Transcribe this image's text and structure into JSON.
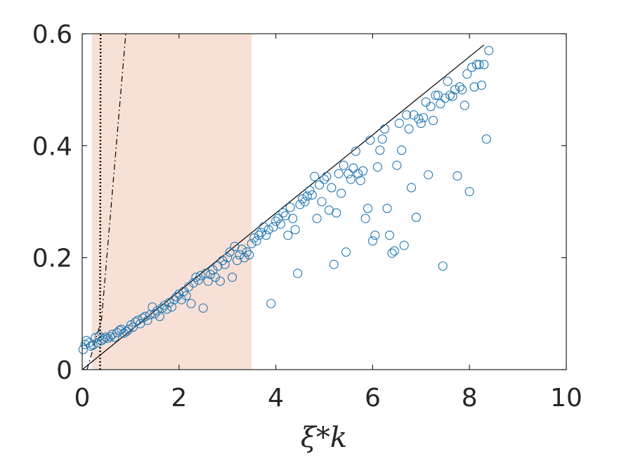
{
  "chart_data": {
    "type": "scatter",
    "title": "",
    "xlabel": "ξ*k",
    "ylabel": "",
    "xlim": [
      0,
      10
    ],
    "ylim": [
      0,
      0.6
    ],
    "xticks": [
      0,
      2,
      4,
      6,
      8,
      10
    ],
    "xtick_labels": [
      "0",
      "2",
      "4",
      "6",
      "8",
      "10"
    ],
    "yticks": [
      0,
      0.2,
      0.4,
      0.6
    ],
    "ytick_labels": [
      "0",
      "0.2",
      "0.4",
      "0.6"
    ],
    "grid": false,
    "shaded_region": {
      "x": [
        0.2,
        3.5
      ],
      "color": "#f8e0d6"
    },
    "colors": {
      "markers": "#1f77b4",
      "axes": "#262626",
      "lines": "#000000"
    },
    "reference_lines": [
      {
        "style": "solid",
        "points": [
          [
            0,
            0
          ],
          [
            8.3,
            0.58
          ]
        ]
      },
      {
        "style": "dotted",
        "points": [
          [
            0.37,
            0
          ],
          [
            0.37,
            0.08
          ],
          [
            0.38,
            0.6
          ]
        ]
      },
      {
        "style": "dashdot",
        "points": [
          [
            0.1,
            0
          ],
          [
            0.4,
            0.09
          ],
          [
            0.9,
            0.6
          ]
        ]
      }
    ],
    "points": [
      [
        0.02,
        0.036
      ],
      [
        0.06,
        0.045
      ],
      [
        0.09,
        0.052
      ],
      [
        0.14,
        0.048
      ],
      [
        0.18,
        0.042
      ],
      [
        0.22,
        0.044
      ],
      [
        0.27,
        0.057
      ],
      [
        0.31,
        0.048
      ],
      [
        0.35,
        0.06
      ],
      [
        0.4,
        0.052
      ],
      [
        0.44,
        0.055
      ],
      [
        0.48,
        0.058
      ],
      [
        0.53,
        0.056
      ],
      [
        0.58,
        0.059
      ],
      [
        0.62,
        0.063
      ],
      [
        0.67,
        0.058
      ],
      [
        0.72,
        0.066
      ],
      [
        0.77,
        0.07
      ],
      [
        0.81,
        0.072
      ],
      [
        0.86,
        0.065
      ],
      [
        0.91,
        0.068
      ],
      [
        0.96,
        0.072
      ],
      [
        1.01,
        0.08
      ],
      [
        1.05,
        0.076
      ],
      [
        1.1,
        0.085
      ],
      [
        1.15,
        0.088
      ],
      [
        1.2,
        0.082
      ],
      [
        1.25,
        0.092
      ],
      [
        1.3,
        0.095
      ],
      [
        1.35,
        0.088
      ],
      [
        1.4,
        0.098
      ],
      [
        1.45,
        0.112
      ],
      [
        1.5,
        0.1
      ],
      [
        1.55,
        0.105
      ],
      [
        1.6,
        0.095
      ],
      [
        1.65,
        0.11
      ],
      [
        1.7,
        0.115
      ],
      [
        1.75,
        0.108
      ],
      [
        1.8,
        0.12
      ],
      [
        1.85,
        0.112
      ],
      [
        1.9,
        0.125
      ],
      [
        1.95,
        0.13
      ],
      [
        2.0,
        0.135
      ],
      [
        2.05,
        0.125
      ],
      [
        2.1,
        0.14
      ],
      [
        2.15,
        0.132
      ],
      [
        2.2,
        0.148
      ],
      [
        2.25,
        0.118
      ],
      [
        2.3,
        0.155
      ],
      [
        2.35,
        0.165
      ],
      [
        2.4,
        0.16
      ],
      [
        2.45,
        0.168
      ],
      [
        2.5,
        0.11
      ],
      [
        2.55,
        0.172
      ],
      [
        2.6,
        0.158
      ],
      [
        2.65,
        0.17
      ],
      [
        2.7,
        0.178
      ],
      [
        2.75,
        0.165
      ],
      [
        2.8,
        0.185
      ],
      [
        2.85,
        0.158
      ],
      [
        2.9,
        0.195
      ],
      [
        2.95,
        0.188
      ],
      [
        3.0,
        0.2
      ],
      [
        3.05,
        0.21
      ],
      [
        3.1,
        0.165
      ],
      [
        3.15,
        0.22
      ],
      [
        3.2,
        0.195
      ],
      [
        3.25,
        0.205
      ],
      [
        3.3,
        0.215
      ],
      [
        3.35,
        0.2
      ],
      [
        3.4,
        0.21
      ],
      [
        3.45,
        0.205
      ],
      [
        3.5,
        0.225
      ],
      [
        3.55,
        0.235
      ],
      [
        3.6,
        0.23
      ],
      [
        3.65,
        0.24
      ],
      [
        3.7,
        0.245
      ],
      [
        3.75,
        0.255
      ],
      [
        3.8,
        0.24
      ],
      [
        3.85,
        0.25
      ],
      [
        3.9,
        0.118
      ],
      [
        3.95,
        0.255
      ],
      [
        4.0,
        0.265
      ],
      [
        4.05,
        0.27
      ],
      [
        4.1,
        0.26
      ],
      [
        4.15,
        0.28
      ],
      [
        4.2,
        0.275
      ],
      [
        4.25,
        0.24
      ],
      [
        4.3,
        0.29
      ],
      [
        4.35,
        0.27
      ],
      [
        4.4,
        0.25
      ],
      [
        4.45,
        0.172
      ],
      [
        4.5,
        0.295
      ],
      [
        4.55,
        0.305
      ],
      [
        4.6,
        0.3
      ],
      [
        4.65,
        0.31
      ],
      [
        4.7,
        0.32
      ],
      [
        4.75,
        0.312
      ],
      [
        4.8,
        0.345
      ],
      [
        4.85,
        0.27
      ],
      [
        4.9,
        0.33
      ],
      [
        4.95,
        0.3
      ],
      [
        5.0,
        0.34
      ],
      [
        5.05,
        0.345
      ],
      [
        5.1,
        0.285
      ],
      [
        5.15,
        0.325
      ],
      [
        5.2,
        0.188
      ],
      [
        5.25,
        0.28
      ],
      [
        5.3,
        0.35
      ],
      [
        5.35,
        0.315
      ],
      [
        5.4,
        0.365
      ],
      [
        5.45,
        0.21
      ],
      [
        5.5,
        0.35
      ],
      [
        5.55,
        0.34
      ],
      [
        5.6,
        0.36
      ],
      [
        5.65,
        0.39
      ],
      [
        5.7,
        0.35
      ],
      [
        5.75,
        0.338
      ],
      [
        5.8,
        0.355
      ],
      [
        5.85,
        0.27
      ],
      [
        5.9,
        0.288
      ],
      [
        5.95,
        0.41
      ],
      [
        6.0,
        0.23
      ],
      [
        6.05,
        0.24
      ],
      [
        6.1,
        0.362
      ],
      [
        6.15,
        0.392
      ],
      [
        6.2,
        0.412
      ],
      [
        6.25,
        0.43
      ],
      [
        6.3,
        0.288
      ],
      [
        6.35,
        0.24
      ],
      [
        6.4,
        0.208
      ],
      [
        6.45,
        0.212
      ],
      [
        6.5,
        0.365
      ],
      [
        6.55,
        0.44
      ],
      [
        6.6,
        0.392
      ],
      [
        6.65,
        0.222
      ],
      [
        6.7,
        0.455
      ],
      [
        6.75,
        0.43
      ],
      [
        6.8,
        0.325
      ],
      [
        6.85,
        0.455
      ],
      [
        6.9,
        0.272
      ],
      [
        6.95,
        0.448
      ],
      [
        7.0,
        0.44
      ],
      [
        7.05,
        0.45
      ],
      [
        7.1,
        0.478
      ],
      [
        7.15,
        0.348
      ],
      [
        7.2,
        0.47
      ],
      [
        7.25,
        0.445
      ],
      [
        7.3,
        0.49
      ],
      [
        7.35,
        0.49
      ],
      [
        7.4,
        0.475
      ],
      [
        7.45,
        0.185
      ],
      [
        7.5,
        0.485
      ],
      [
        7.55,
        0.515
      ],
      [
        7.6,
        0.49
      ],
      [
        7.65,
        0.488
      ],
      [
        7.7,
        0.5
      ],
      [
        7.75,
        0.346
      ],
      [
        7.8,
        0.505
      ],
      [
        7.85,
        0.5
      ],
      [
        7.9,
        0.472
      ],
      [
        7.95,
        0.528
      ],
      [
        8.0,
        0.318
      ],
      [
        8.05,
        0.54
      ],
      [
        8.1,
        0.505
      ],
      [
        8.15,
        0.545
      ],
      [
        8.2,
        0.545
      ],
      [
        8.25,
        0.508
      ],
      [
        8.3,
        0.545
      ],
      [
        8.35,
        0.412
      ],
      [
        8.4,
        0.57
      ]
    ]
  }
}
